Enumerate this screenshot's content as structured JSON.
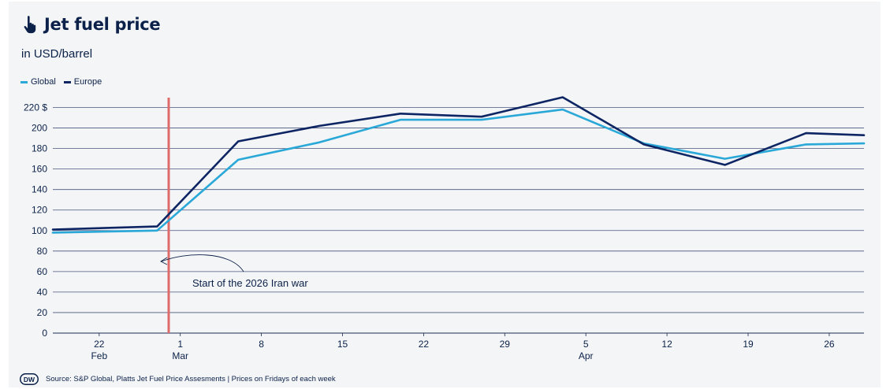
{
  "header": {
    "title": "Jet fuel price",
    "subtitle": "in USD/barrel"
  },
  "icons": {
    "title_icon": "hand-pointer-icon",
    "logo": "dw-logo"
  },
  "colors": {
    "global": "#2aa8d8",
    "europe": "#0d2563",
    "marker": "#de6a6a",
    "text": "#0b2149"
  },
  "footer": {
    "source": "Source: S&P Global, Platts Jet Fuel Price Assesments | Prices on Fridays of each week",
    "logo_text": "DW"
  },
  "chart_data": {
    "type": "line",
    "title": "Jet fuel price",
    "subtitle": "in USD/barrel",
    "ylim": [
      0,
      220
    ],
    "y_ticks": [
      0,
      20,
      40,
      60,
      80,
      100,
      120,
      140,
      160,
      180,
      200,
      220
    ],
    "y_tick_labels": [
      "0",
      "20",
      "40",
      "60",
      "80",
      "100",
      "120",
      "140",
      "160",
      "180",
      "200",
      "220 $"
    ],
    "x_ticks": [
      {
        "date": "2026-02-22",
        "day": "22",
        "month": "Feb"
      },
      {
        "date": "2026-03-01",
        "day": "1",
        "month": "Mar"
      },
      {
        "date": "2026-03-08",
        "day": "8",
        "month": ""
      },
      {
        "date": "2026-03-15",
        "day": "15",
        "month": ""
      },
      {
        "date": "2026-03-22",
        "day": "22",
        "month": ""
      },
      {
        "date": "2026-03-29",
        "day": "29",
        "month": ""
      },
      {
        "date": "2026-04-05",
        "day": "5",
        "month": "Apr"
      },
      {
        "date": "2026-04-12",
        "day": "12",
        "month": ""
      },
      {
        "date": "2026-04-19",
        "day": "19",
        "month": ""
      },
      {
        "date": "2026-04-26",
        "day": "26",
        "month": ""
      }
    ],
    "xlim": [
      "2026-02-18",
      "2026-04-29"
    ],
    "legend_position": "top-left",
    "grid": "horizontal",
    "series": [
      {
        "name": "Global",
        "points": [
          {
            "x": "2026-02-18",
            "y": 98
          },
          {
            "x": "2026-02-27",
            "y": 100
          },
          {
            "x": "2026-03-06",
            "y": 169
          },
          {
            "x": "2026-03-13",
            "y": 186
          },
          {
            "x": "2026-03-20",
            "y": 208
          },
          {
            "x": "2026-03-27",
            "y": 208
          },
          {
            "x": "2026-04-03",
            "y": 218
          },
          {
            "x": "2026-04-10",
            "y": 185
          },
          {
            "x": "2026-04-17",
            "y": 170
          },
          {
            "x": "2026-04-24",
            "y": 184
          },
          {
            "x": "2026-04-29",
            "y": 185
          }
        ]
      },
      {
        "name": "Europe",
        "points": [
          {
            "x": "2026-02-18",
            "y": 101
          },
          {
            "x": "2026-02-27",
            "y": 104
          },
          {
            "x": "2026-03-06",
            "y": 187
          },
          {
            "x": "2026-03-13",
            "y": 202
          },
          {
            "x": "2026-03-20",
            "y": 214
          },
          {
            "x": "2026-03-27",
            "y": 211
          },
          {
            "x": "2026-04-03",
            "y": 230
          },
          {
            "x": "2026-04-10",
            "y": 184
          },
          {
            "x": "2026-04-17",
            "y": 164
          },
          {
            "x": "2026-04-24",
            "y": 195
          },
          {
            "x": "2026-04-29",
            "y": 193
          }
        ]
      }
    ],
    "annotations": [
      {
        "type": "vertical-line",
        "x": "2026-02-28",
        "label": "Start of the 2026 Iran war"
      }
    ]
  }
}
